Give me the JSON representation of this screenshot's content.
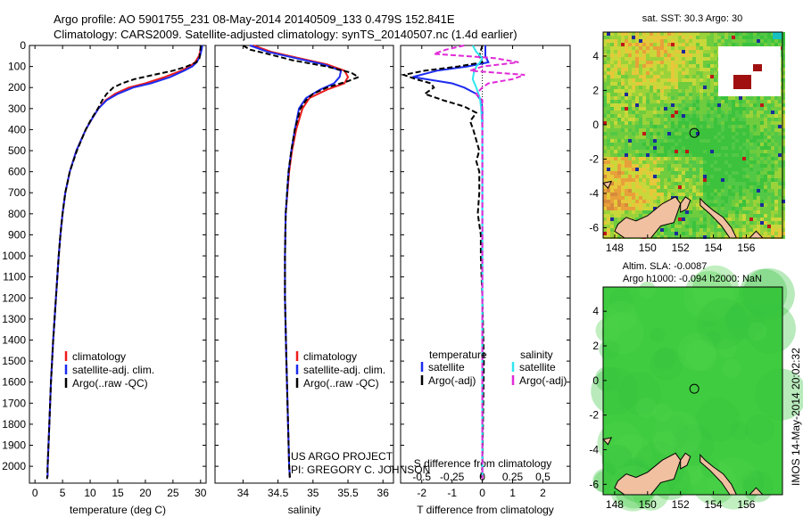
{
  "header": {
    "title_line1": "Argo profile: AO 5901755_231 08-May-2014 20140509_133 0.479S 152.841E",
    "title_line2": "Climatology: CARS2009. Satellite-adjusted climatology: synTS_20140507.nc (1.4d earlier)"
  },
  "colors": {
    "climatology": "#ee1c1c",
    "satellite": "#1c2cf0",
    "argo": "#000000",
    "sal_satellite": "#2ee6f0",
    "sal_argo": "#e02ad8",
    "land": "#f0c0a0",
    "sst_green": "#3cc23c",
    "sla_green": "#40cc40"
  },
  "chart_data": [
    {
      "type": "line",
      "name": "temperature-profile",
      "xlabel": "temperature (deg C)",
      "ylabel": "",
      "xlim": [
        -1,
        31
      ],
      "ylim": [
        2080,
        0
      ],
      "xticks": [
        0,
        5,
        10,
        15,
        20,
        25,
        30
      ],
      "yticks": [
        0,
        100,
        200,
        300,
        400,
        500,
        600,
        700,
        800,
        900,
        1000,
        1100,
        1200,
        1300,
        1400,
        1500,
        1600,
        1700,
        1800,
        1900,
        2000
      ],
      "legend": [
        "climatology",
        "satellite-adj. clim.",
        "Argo(..raw -QC)"
      ],
      "series": [
        {
          "name": "climatology",
          "pressure": [
            0,
            20,
            50,
            80,
            100,
            120,
            150,
            180,
            200,
            230,
            260,
            300,
            350,
            400,
            500,
            600,
            700,
            800,
            900,
            1000,
            1200,
            1400,
            1600,
            1800,
            2000,
            2050
          ],
          "values": [
            30.1,
            30.0,
            29.7,
            29.0,
            28.0,
            26.5,
            23.5,
            20.0,
            17.0,
            14.5,
            12.8,
            11.5,
            10.3,
            9.2,
            7.5,
            6.3,
            5.5,
            5.0,
            4.6,
            4.3,
            3.8,
            3.3,
            2.9,
            2.6,
            2.3,
            2.3
          ]
        },
        {
          "name": "satellite-adj. clim.",
          "pressure": [
            0,
            20,
            50,
            80,
            100,
            120,
            150,
            180,
            200,
            230,
            260,
            300,
            350,
            400,
            500,
            600,
            700,
            800,
            900,
            1000,
            1200,
            1400,
            1600,
            1800,
            2000,
            2050
          ],
          "values": [
            30.3,
            30.2,
            29.9,
            29.3,
            28.5,
            27.0,
            24.5,
            21.0,
            17.8,
            15.0,
            13.0,
            11.5,
            10.3,
            9.2,
            7.5,
            6.3,
            5.5,
            5.0,
            4.6,
            4.3,
            3.8,
            3.3,
            2.9,
            2.6,
            2.3,
            2.3
          ]
        },
        {
          "name": "Argo(..raw -QC)",
          "pressure": [
            0,
            10,
            30,
            60,
            80,
            100,
            120,
            140,
            160,
            180,
            200,
            230,
            260,
            300,
            350,
            400,
            500,
            600,
            700,
            800,
            900,
            1000,
            1200,
            1400,
            1600,
            1800,
            2000,
            2060
          ],
          "values": [
            30.0,
            30.0,
            29.9,
            29.8,
            29.2,
            27.5,
            25.0,
            21.5,
            18.0,
            15.8,
            14.2,
            13.0,
            12.2,
            11.4,
            10.2,
            9.2,
            7.6,
            6.3,
            5.5,
            5.0,
            4.6,
            4.3,
            3.8,
            3.3,
            2.9,
            2.6,
            2.3,
            2.2
          ]
        }
      ]
    },
    {
      "type": "line",
      "name": "salinity-profile",
      "xlabel": "salinity",
      "ylabel": "",
      "xlim": [
        33.6,
        36.15
      ],
      "ylim": [
        2080,
        0
      ],
      "xticks": [
        34,
        34.5,
        35,
        35.5,
        36
      ],
      "legend": [
        "climatology",
        "satellite-adj. clim.",
        "Argo(..raw -QC)"
      ],
      "annotation": [
        "US ARGO PROJECT",
        "PI: GREGORY C. JOHNSON"
      ],
      "series": [
        {
          "name": "climatology",
          "pressure": [
            0,
            30,
            60,
            90,
            120,
            150,
            180,
            210,
            250,
            300,
            400,
            500,
            600,
            800,
            1000,
            1200,
            1500,
            2000,
            2050
          ],
          "values": [
            34.15,
            34.4,
            34.8,
            35.2,
            35.45,
            35.5,
            35.45,
            35.2,
            34.95,
            34.85,
            34.76,
            34.7,
            34.66,
            34.61,
            34.6,
            34.6,
            34.62,
            34.66,
            34.67
          ]
        },
        {
          "name": "satellite-adj. clim.",
          "pressure": [
            0,
            30,
            60,
            90,
            120,
            150,
            180,
            210,
            250,
            300,
            400,
            500,
            600,
            800,
            1000,
            1200,
            1500,
            2000,
            2050
          ],
          "values": [
            34.1,
            34.35,
            34.75,
            35.15,
            35.4,
            35.38,
            35.3,
            35.1,
            34.9,
            34.8,
            34.74,
            34.69,
            34.65,
            34.61,
            34.6,
            34.6,
            34.62,
            34.66,
            34.67
          ]
        },
        {
          "name": "Argo(..raw -QC)",
          "pressure": [
            0,
            20,
            40,
            70,
            100,
            130,
            150,
            170,
            200,
            230,
            260,
            300,
            400,
            500,
            600,
            800,
            1000,
            1200,
            1500,
            2000,
            2060
          ],
          "values": [
            34.0,
            34.1,
            34.35,
            34.7,
            35.2,
            35.55,
            35.65,
            35.5,
            35.2,
            35.0,
            34.9,
            34.82,
            34.74,
            34.69,
            34.65,
            34.61,
            34.6,
            34.6,
            34.62,
            34.66,
            34.67
          ]
        }
      ]
    },
    {
      "type": "line",
      "name": "difference-profile",
      "xlabel": "T difference from climatology",
      "xlabel_top": "S difference from climatology",
      "xlim": [
        -2.7,
        2.9
      ],
      "ylim": [
        2080,
        0
      ],
      "xticks": [
        -2,
        -1,
        0,
        1,
        2
      ],
      "xticks_s": [
        -0.5,
        -0.25,
        0,
        0.25,
        0.5
      ],
      "xticklabels_s": [
        "-0.5",
        "-0.25",
        "0",
        "0.25",
        "0.5"
      ],
      "legend_titles": [
        "temperature",
        "salinity"
      ],
      "legend": [
        "satellite",
        "Argo(-adj)",
        "satellite",
        "Argo(-adj)"
      ],
      "series": [
        {
          "name": "T satellite",
          "pressure": [
            0,
            50,
            80,
            100,
            120,
            150,
            180,
            200,
            230,
            260,
            300,
            400,
            600,
            1000,
            1500,
            2000,
            2050
          ],
          "values": [
            0.1,
            0.1,
            0.2,
            -0.5,
            -1.5,
            -2.3,
            -1.0,
            -0.6,
            -0.2,
            -0.05,
            0,
            0,
            0,
            0,
            0,
            0,
            0
          ]
        },
        {
          "name": "T Argo(-adj)",
          "pressure": [
            0,
            50,
            80,
            100,
            120,
            140,
            160,
            180,
            200,
            230,
            260,
            290,
            320,
            360,
            400,
            450,
            500,
            550,
            600,
            700,
            800,
            900,
            1000,
            1200,
            1500,
            2000,
            2060
          ],
          "values": [
            0.0,
            -0.1,
            0.0,
            -0.8,
            -1.9,
            -2.6,
            -2.2,
            -1.7,
            -1.6,
            -1.9,
            -1.3,
            -0.6,
            -0.2,
            -0.4,
            -0.3,
            -0.2,
            -0.1,
            -0.2,
            -0.1,
            -0.1,
            -0.15,
            -0.05,
            -0.05,
            0,
            0.05,
            0,
            -0.05
          ]
        },
        {
          "name": "S satellite",
          "pressure": [
            0,
            30,
            60,
            80,
            100,
            130,
            160,
            200,
            250,
            300,
            400,
            600,
            1000,
            1500,
            2000,
            2050
          ],
          "values": [
            -0.08,
            -0.05,
            0.0,
            -0.02,
            -0.05,
            -0.07,
            -0.08,
            -0.05,
            -0.02,
            -0.01,
            0,
            0,
            0,
            0,
            0,
            0
          ]
        },
        {
          "name": "S Argo(-adj)",
          "pressure": [
            0,
            20,
            40,
            60,
            80,
            100,
            120,
            140,
            160,
            180,
            200,
            230,
            260,
            300,
            400,
            600,
            1000,
            1500,
            2000,
            2060
          ],
          "values": [
            -0.15,
            -0.3,
            -0.4,
            0.1,
            0.3,
            0.0,
            -0.1,
            0.35,
            0.25,
            0.05,
            0.0,
            -0.05,
            0.0,
            0.0,
            0,
            0,
            0,
            0,
            0,
            0
          ]
        }
      ]
    },
    {
      "type": "heatmap",
      "name": "sst-map",
      "title": "sat. SST: 30.3 Argo: 30",
      "xticks": [
        148,
        150,
        152,
        154,
        156
      ],
      "yticks": [
        4,
        2,
        0,
        -2,
        -4,
        -6
      ],
      "xlim": [
        147.3,
        158.2
      ],
      "ylim": [
        -6.6,
        5.4
      ],
      "argo_position": {
        "lon": 152.841,
        "lat": -0.479
      }
    },
    {
      "type": "heatmap",
      "name": "sla-map",
      "title_line1": "Altim. SLA: -0.0087",
      "title_line2": "Argo h1000: -0.094 h2000: NaN",
      "xticks": [
        148,
        150,
        152,
        154,
        156
      ],
      "yticks": [
        4,
        2,
        0,
        -2,
        -4,
        -6
      ],
      "xlim": [
        147.3,
        158.2
      ],
      "ylim": [
        -6.6,
        5.4
      ],
      "argo_position": {
        "lon": 152.841,
        "lat": -0.479
      }
    }
  ],
  "footer": {
    "stamp": "IMOS 14-May-2014 20:02:32"
  }
}
